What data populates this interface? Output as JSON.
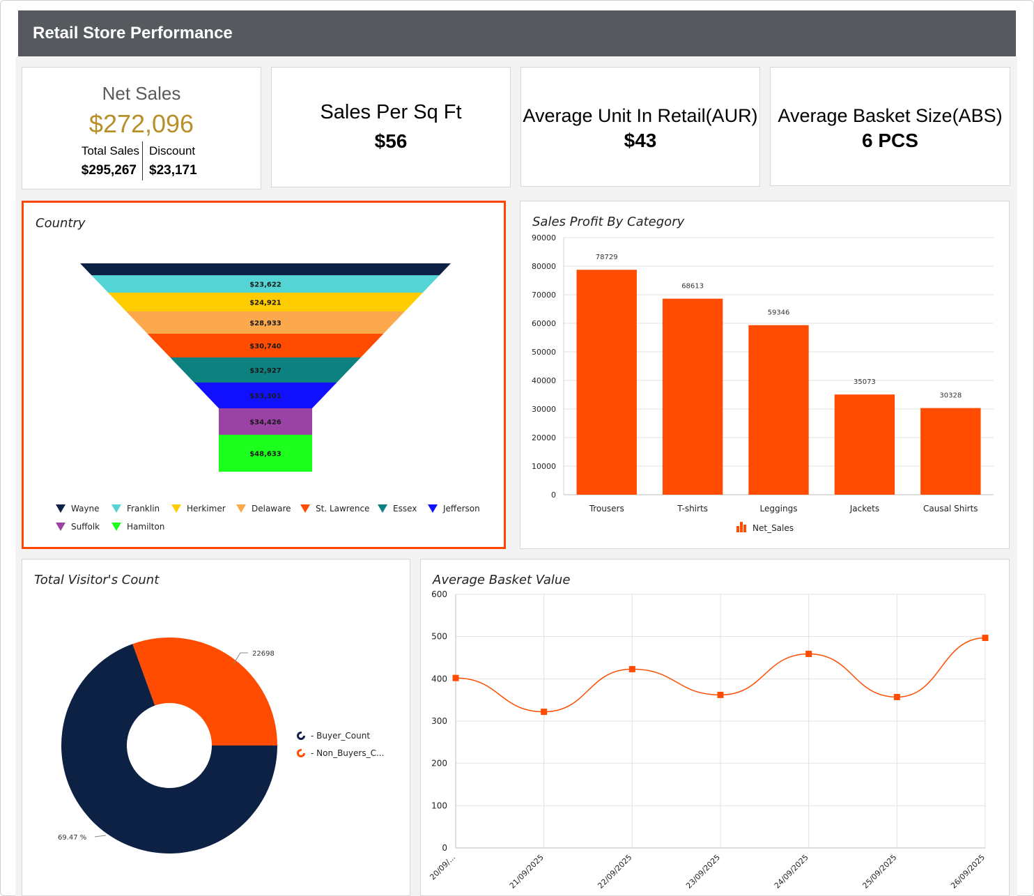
{
  "header": {
    "title": "Retail Store Performance"
  },
  "kpis": {
    "net_sales": {
      "label": "Net Sales",
      "value": "$272,096",
      "total_label": "Total Sales",
      "total_value": "$295,267",
      "discount_label": "Discount",
      "discount_value": "$23,171",
      "accent": "#b8902a"
    },
    "sales_per_sqft": {
      "label": "Sales Per Sq Ft",
      "value": "$56"
    },
    "aur": {
      "label": "Average Unit In Retail(AUR)",
      "value": "$43"
    },
    "abs": {
      "label": "Average Basket Size(ABS)",
      "value": "6 PCS"
    }
  },
  "country_panel": {
    "title": "Country",
    "selected_border_color": "#ff4500",
    "chart_data": {
      "type": "funnel",
      "segments": [
        {
          "name": "Wayne",
          "label": "",
          "color": "#0d2145"
        },
        {
          "name": "Franklin",
          "label": "$23,622",
          "color": "#54d4d4"
        },
        {
          "name": "Herkimer",
          "label": "$24,921",
          "color": "#ffcc00"
        },
        {
          "name": "Delaware",
          "label": "$28,933",
          "color": "#fca94e"
        },
        {
          "name": "St. Lawrence",
          "label": "$30,740",
          "color": "#ff4c00"
        },
        {
          "name": "Essex",
          "label": "$32,927",
          "color": "#0d8080"
        },
        {
          "name": "Jefferson",
          "label": "$33,301",
          "color": "#1010ff"
        },
        {
          "name": "Suffolk",
          "label": "$34,426",
          "color": "#9b42a5"
        },
        {
          "name": "Hamilton",
          "label": "$48,633",
          "color": "#1cff1c"
        }
      ]
    }
  },
  "category_panel": {
    "title": "Sales Profit By Category",
    "chart_data": {
      "type": "bar",
      "categories": [
        "Trousers",
        "T-shirts",
        "Leggings",
        "Jackets",
        "Causal Shirts"
      ],
      "series": [
        {
          "name": "Net_Sales",
          "values": [
            78729,
            68613,
            59346,
            35073,
            30328
          ],
          "color": "#ff4c00"
        }
      ],
      "ylim": [
        0,
        90000
      ],
      "yticks": [
        "0",
        "10000",
        "20000",
        "30000",
        "40000",
        "50000",
        "60000",
        "70000",
        "80000",
        "90000"
      ],
      "legend": "bottom"
    }
  },
  "visitors_panel": {
    "title": "Total Visitor's Count",
    "chart_data": {
      "type": "pie",
      "slices": [
        {
          "name": "- Buyer_Count",
          "percent": 69.47,
          "label": "69.47 %",
          "color": "#0d2145"
        },
        {
          "name": "- Non_Buyers_C...",
          "percent": 30.53,
          "label": "22698",
          "color": "#ff4c00"
        }
      ],
      "legend": "right"
    }
  },
  "basket_panel": {
    "title": "Average Basket Value",
    "chart_data": {
      "type": "line",
      "x": [
        "20/09/...",
        "21/09/2025",
        "22/09/2025",
        "23/09/2025",
        "24/09/2025",
        "25/09/2025",
        "26/09/2025"
      ],
      "series": [
        {
          "values": [
            402,
            322,
            423,
            362,
            459,
            357,
            497
          ],
          "color": "#ff4c00"
        }
      ],
      "ylim": [
        0,
        600
      ],
      "yticks": [
        "0",
        "100",
        "200",
        "300",
        "400",
        "500",
        "600"
      ],
      "grid": true
    }
  }
}
